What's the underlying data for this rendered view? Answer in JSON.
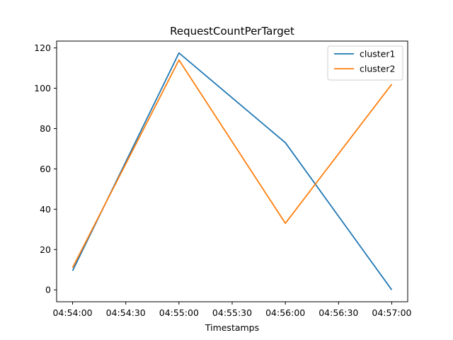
{
  "chart_data": {
    "type": "line",
    "title": "RequestCountPerTarget",
    "xlabel": "Timestamps",
    "ylabel": "",
    "x": [
      "04:54:00",
      "04:55:00",
      "04:56:00",
      "04:57:00"
    ],
    "series": [
      {
        "name": "cluster1",
        "color": "#1f77b4",
        "values": [
          9.5,
          117.5,
          73,
          0
        ]
      },
      {
        "name": "cluster2",
        "color": "#ff7f0e",
        "values": [
          11,
          114,
          33,
          102
        ]
      }
    ],
    "xticks": [
      "04:54:00",
      "04:54:30",
      "04:55:00",
      "04:55:30",
      "04:56:00",
      "04:56:30",
      "04:57:00"
    ],
    "yticks": [
      0,
      20,
      40,
      60,
      80,
      100,
      120
    ],
    "ylim": [
      -5.9,
      123.4
    ],
    "xlim": [
      "04:53:51",
      "04:57:09"
    ],
    "grid": false,
    "legend_position": "top-right"
  }
}
